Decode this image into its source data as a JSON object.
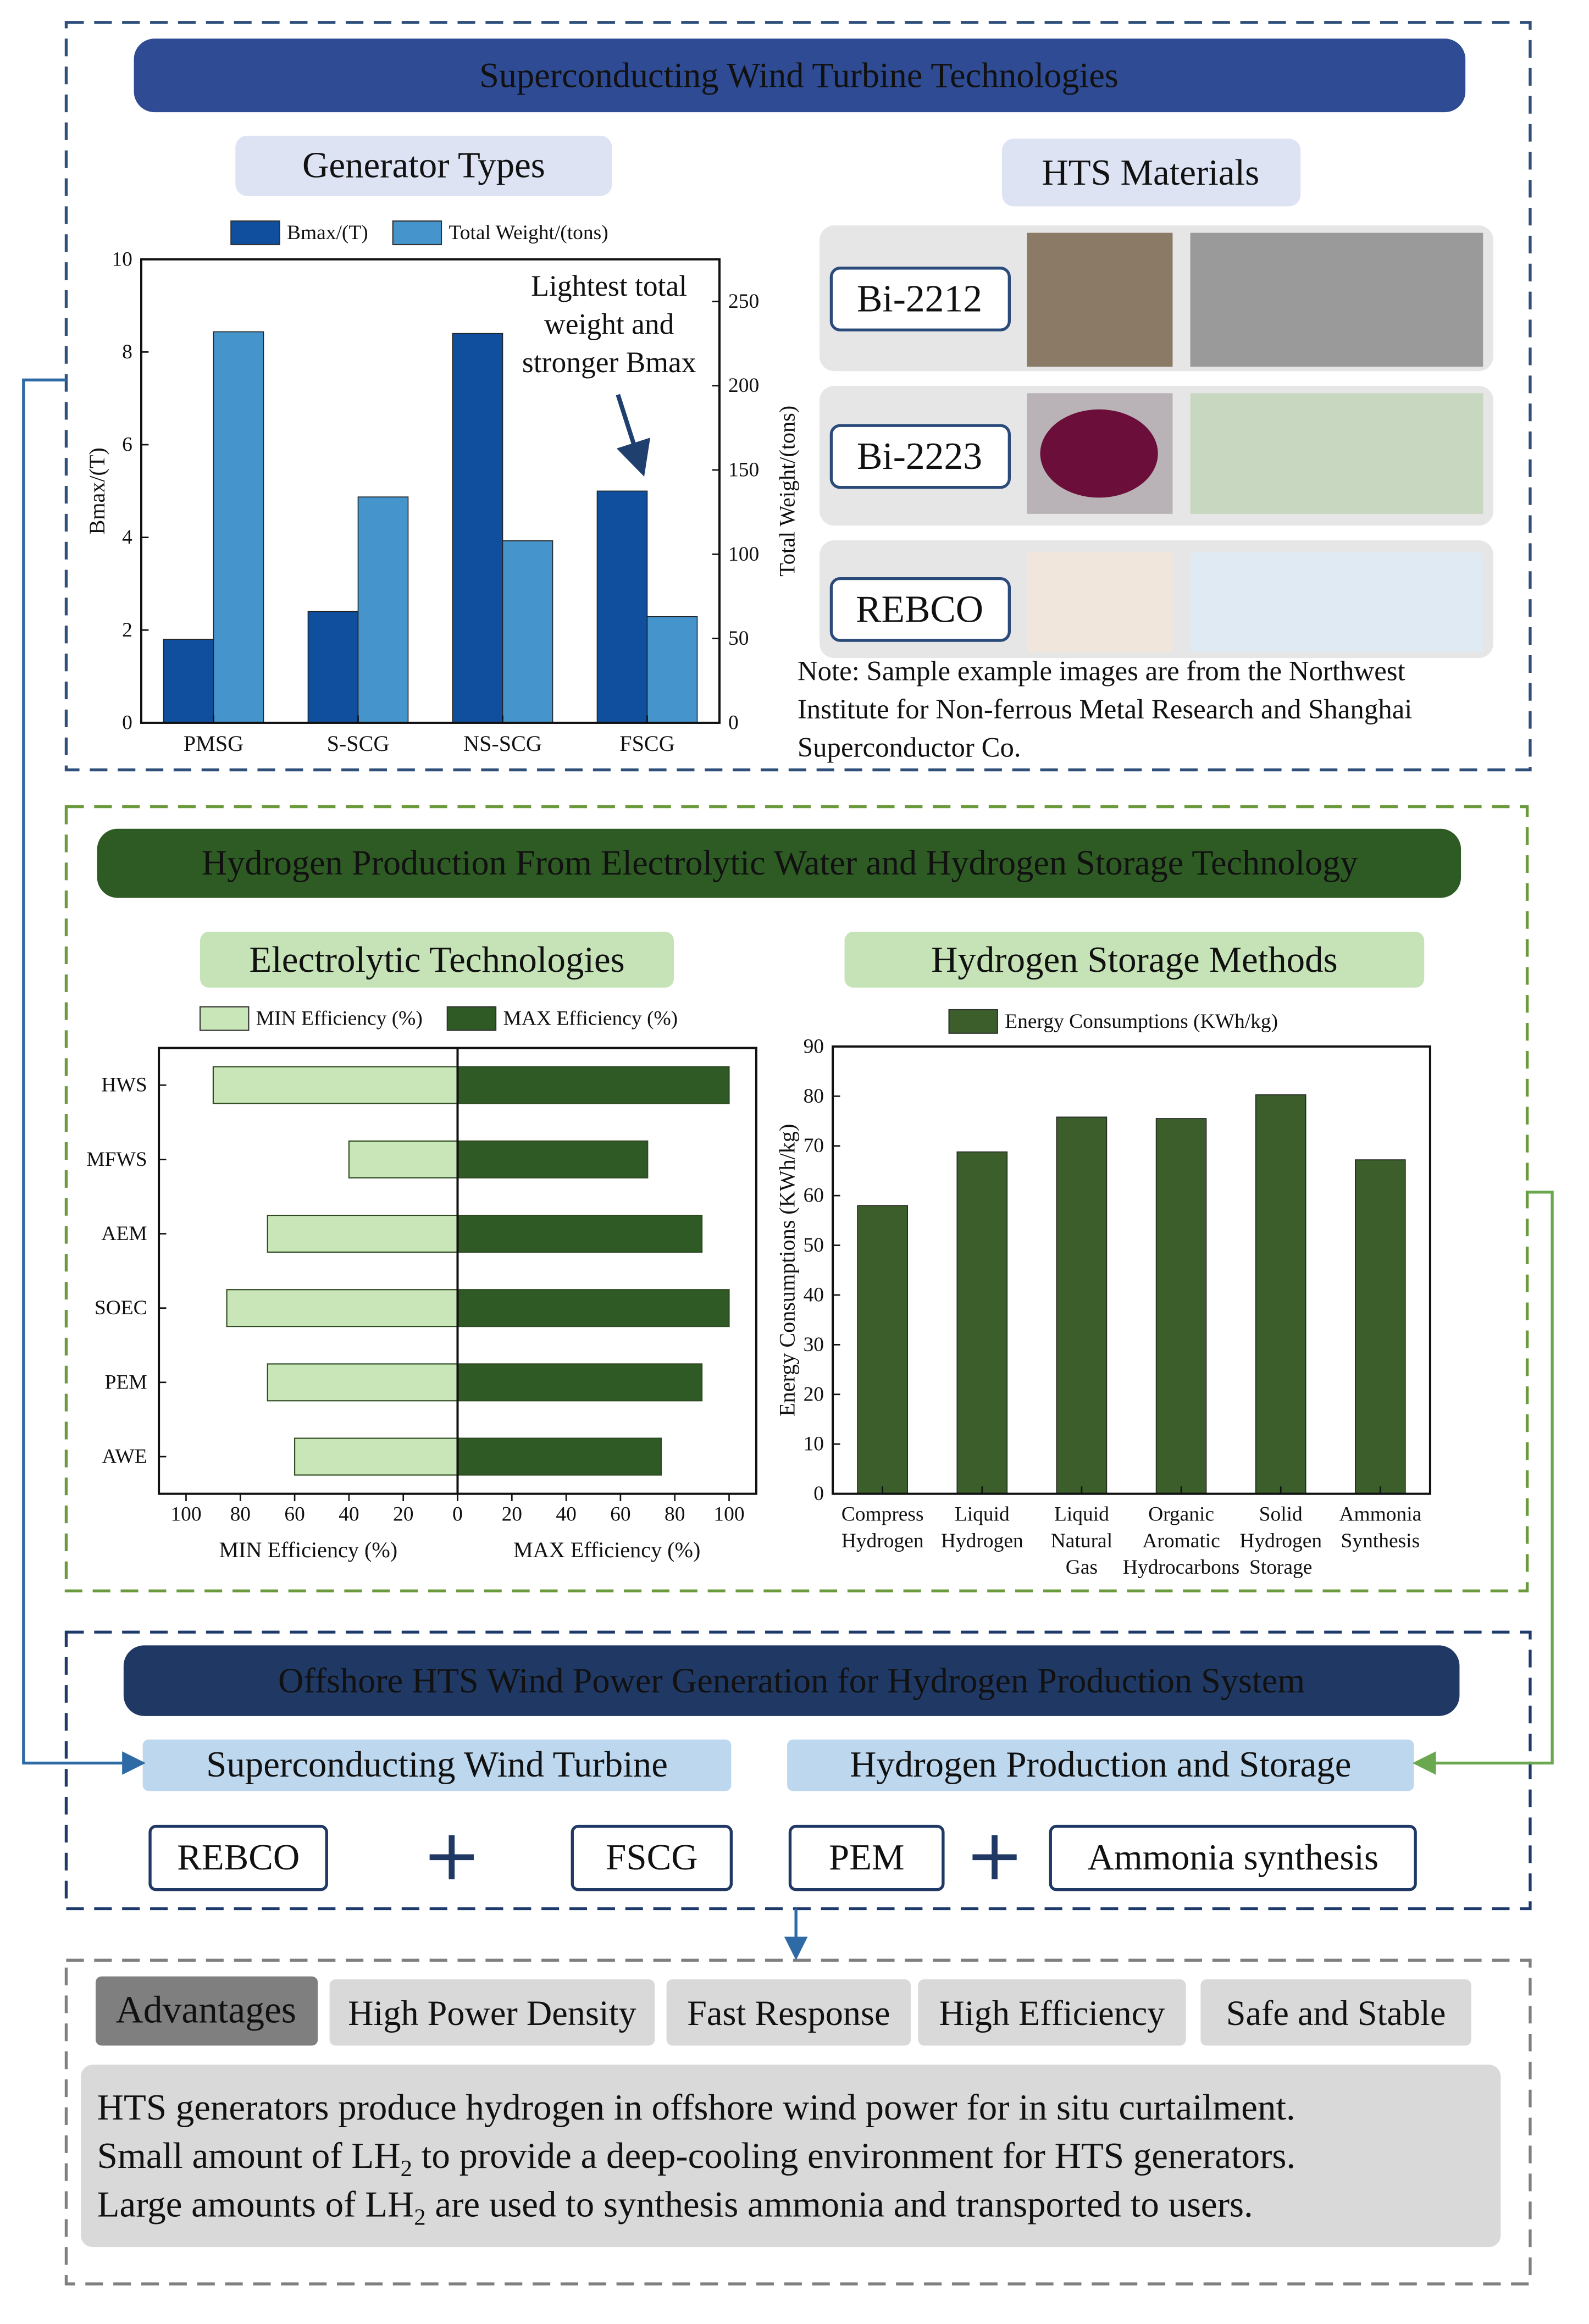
{
  "wind": {
    "title": "Superconducting Wind Turbine Technologies",
    "generator_heading": "Generator Types",
    "materials_heading": "HTS Materials",
    "materials": [
      "Bi-2212",
      "Bi-2223",
      "REBCO"
    ],
    "note": [
      "Note: Sample example images are from the Northwest",
      "Institute for  Non-ferrous Metal Research and Shanghai",
      "Superconductor Co."
    ]
  },
  "hydrogen": {
    "title": "Hydrogen Production From Electrolytic Water and Hydrogen Storage Technology",
    "electrolysis_heading": "Electrolytic Technologies",
    "storage_heading": "Hydrogen Storage Methods"
  },
  "system": {
    "title": "Offshore HTS Wind Power Generation for Hydrogen Production System",
    "turbine_heading": "Superconducting Wind Turbine",
    "production_heading": "Hydrogen Production and Storage",
    "items": [
      "REBCO",
      "FSCG",
      "PEM",
      "Ammonia synthesis"
    ]
  },
  "advantages": {
    "label": "Advantages",
    "items": [
      "High Power Density",
      "Fast Response",
      "High Efficiency",
      "Safe and Stable"
    ],
    "lines": [
      [
        "HTS generators produce hydrogen in offshore wind power for in situ curtailment."
      ],
      [
        "Small amount of LH",
        "2",
        " to provide a deep-cooling environment for HTS generators."
      ],
      [
        "Large amounts of LH",
        "2",
        " are used to synthesis ammonia and transported to users."
      ]
    ]
  },
  "chart_data": [
    {
      "type": "bar",
      "categories": [
        "PMSG",
        "S-SCG",
        "NS-SCG",
        "FSCG"
      ],
      "series": [
        {
          "name": "Bmax/(T)",
          "color": "#0f4f9e",
          "values": [
            1.8,
            2.4,
            8.4,
            5.0
          ]
        },
        {
          "name": "Total Weight/(tons)",
          "color": "#4595cc",
          "values": [
            232,
            134,
            108,
            63
          ],
          "axis": "y2"
        }
      ],
      "ylabel": "Bmax/(T)",
      "y2label": "Total Weight/(tons)",
      "ylim": [
        0,
        10
      ],
      "yticks": [
        0,
        2,
        4,
        6,
        8,
        10
      ],
      "y2lim": [
        0,
        275
      ],
      "y2ticks": [
        0,
        50,
        100,
        150,
        200,
        250
      ],
      "annotation": [
        "Lightest total",
        "weight and",
        "stronger Bmax"
      ],
      "legend": "top"
    },
    {
      "type": "butterfly",
      "categories": [
        "HWS",
        "MFWS",
        "AEM",
        "SOEC",
        "PEM",
        "AWE"
      ],
      "series": [
        {
          "name": "MIN Efficiency (%)",
          "color": "#c9e6b8",
          "values": [
            90,
            40,
            70,
            85,
            70,
            60
          ]
        },
        {
          "name": "MAX Efficiency (%)",
          "color": "#2f5a25",
          "values": [
            100,
            70,
            90,
            100,
            90,
            75
          ]
        }
      ],
      "xlim": [
        0,
        110
      ],
      "xticks": [
        0,
        20,
        40,
        60,
        80,
        100
      ],
      "legend": "top"
    },
    {
      "type": "bar",
      "categories": [
        [
          "Compress",
          "Hydrogen"
        ],
        [
          "Liquid",
          "Hydrogen"
        ],
        [
          "Liquid",
          "Natural",
          "Gas"
        ],
        [
          "Organic",
          "Aromatic",
          "Hydrocarbons"
        ],
        [
          "Solid",
          "Hydrogen",
          "Storage"
        ],
        [
          "Ammonia",
          "Synthesis"
        ]
      ],
      "series": [
        {
          "name": "Energy Consumptions (KWh/kg)",
          "color": "#3b5e2b",
          "values": [
            58,
            68.8,
            75.8,
            75.5,
            80.3,
            67.2
          ]
        }
      ],
      "ylabel": "Energy Consumptions (KWh/kg)",
      "ylim": [
        0,
        90
      ],
      "yticks": [
        0,
        10,
        20,
        30,
        40,
        50,
        60,
        70,
        80,
        90
      ],
      "legend": "top"
    }
  ]
}
